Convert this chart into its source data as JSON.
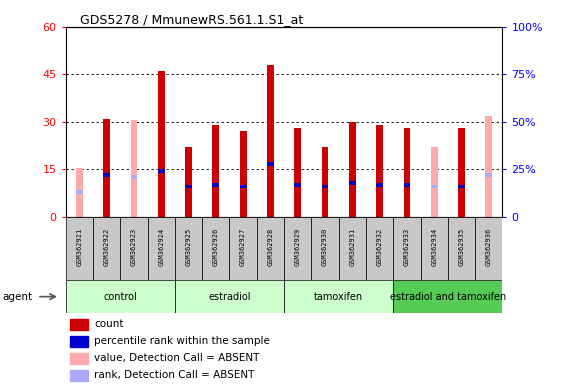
{
  "title": "GDS5278 / MmunewRS.561.1.S1_at",
  "samples": [
    "GSM362921",
    "GSM362922",
    "GSM362923",
    "GSM362924",
    "GSM362925",
    "GSM362926",
    "GSM362927",
    "GSM362928",
    "GSM362929",
    "GSM362930",
    "GSM362931",
    "GSM362932",
    "GSM362933",
    "GSM362934",
    "GSM362935",
    "GSM362936"
  ],
  "count_values": [
    0,
    31,
    0,
    46,
    22,
    29,
    27,
    48,
    28,
    22,
    30,
    29,
    28,
    0,
    28,
    0
  ],
  "absent_values": [
    15.5,
    0,
    30.5,
    0,
    0,
    0,
    0,
    0,
    0,
    0,
    0,
    0,
    0,
    22,
    0,
    32
  ],
  "rank_present": [
    0,
    22,
    0,
    24,
    16,
    17,
    16,
    28,
    17,
    16,
    18,
    17,
    17,
    0,
    16,
    0
  ],
  "rank_absent": [
    13,
    0,
    21,
    0,
    0,
    0,
    0,
    0,
    0,
    0,
    0,
    0,
    0,
    16,
    0,
    22
  ],
  "ylim_left": [
    0,
    60
  ],
  "ylim_right": [
    0,
    100
  ],
  "yticks_left": [
    0,
    15,
    30,
    45,
    60
  ],
  "yticks_right": [
    0,
    25,
    50,
    75,
    100
  ],
  "color_count": "#cc0000",
  "color_absent": "#ffaaaa",
  "color_rank_present": "#0000cc",
  "color_rank_absent": "#aaaaff",
  "bar_width": 0.25,
  "group_labels": [
    "control",
    "estradiol",
    "tamoxifen",
    "estradiol and tamoxifen"
  ],
  "group_ranges": [
    [
      0,
      4
    ],
    [
      4,
      8
    ],
    [
      8,
      12
    ],
    [
      12,
      16
    ]
  ],
  "group_colors": [
    "#ccffcc",
    "#ccffcc",
    "#ccffcc",
    "#55cc55"
  ],
  "legend_items": [
    [
      "#cc0000",
      "count"
    ],
    [
      "#0000cc",
      "percentile rank within the sample"
    ],
    [
      "#ffaaaa",
      "value, Detection Call = ABSENT"
    ],
    [
      "#aaaaff",
      "rank, Detection Call = ABSENT"
    ]
  ]
}
